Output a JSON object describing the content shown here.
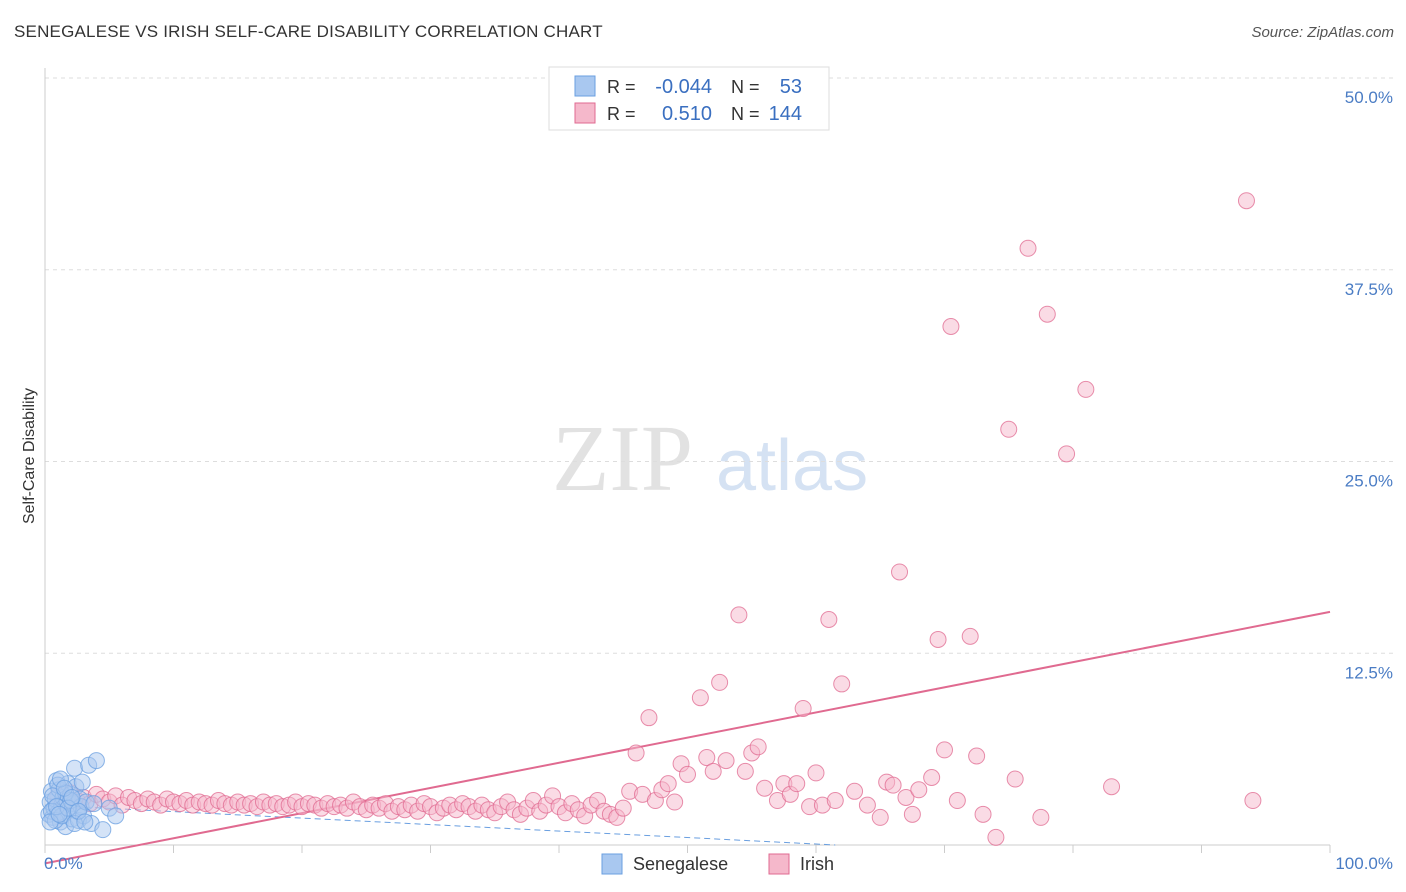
{
  "header": {
    "title": "SENEGALESE VS IRISH SELF-CARE DISABILITY CORRELATION CHART",
    "source": "Source: ZipAtlas.com"
  },
  "watermark": {
    "zip": "ZIP",
    "atlas": "atlas"
  },
  "chart_data": {
    "type": "scatter",
    "title": "SENEGALESE VS IRISH SELF-CARE DISABILITY CORRELATION CHART",
    "xlabel": "",
    "ylabel": "Self-Care Disability",
    "xlim": [
      0,
      100
    ],
    "ylim": [
      0,
      50
    ],
    "x_tick_labels": [
      "0.0%",
      "100.0%"
    ],
    "y_ticks": [
      12.5,
      25.0,
      37.5,
      50.0
    ],
    "y_tick_labels": [
      "12.5%",
      "25.0%",
      "37.5%",
      "50.0%"
    ],
    "grid": true,
    "legend_position": "top-center",
    "legend": {
      "rows": [
        {
          "name": "Senegalese",
          "r_label": "R =",
          "r_value": "-0.044",
          "n_label": "N =",
          "n_value": "53"
        },
        {
          "name": "Irish",
          "r_label": "R =",
          "r_value": "0.510",
          "n_label": "N =",
          "n_value": "144"
        }
      ]
    },
    "series": [
      {
        "name": "Senegalese",
        "color": "#6a9fe0",
        "fill": "#a9c8f0",
        "trend": {
          "x": [
            0,
            61.5
          ],
          "y": [
            2.6,
            0.0
          ],
          "style": "dashed"
        },
        "points": [
          [
            0.3,
            2.0
          ],
          [
            0.4,
            2.8
          ],
          [
            0.5,
            3.5
          ],
          [
            0.6,
            1.8
          ],
          [
            0.7,
            2.4
          ],
          [
            0.8,
            3.0
          ],
          [
            0.9,
            4.2
          ],
          [
            1.0,
            2.1
          ],
          [
            1.1,
            3.6
          ],
          [
            1.2,
            1.5
          ],
          [
            1.3,
            2.6
          ],
          [
            1.4,
            3.1
          ],
          [
            1.5,
            2.0
          ],
          [
            1.6,
            1.2
          ],
          [
            1.7,
            2.9
          ],
          [
            1.8,
            4.0
          ],
          [
            1.9,
            2.3
          ],
          [
            2.0,
            3.3
          ],
          [
            2.1,
            1.7
          ],
          [
            2.2,
            2.7
          ],
          [
            2.3,
            5.0
          ],
          [
            2.4,
            3.8
          ],
          [
            2.5,
            2.2
          ],
          [
            2.6,
            1.6
          ],
          [
            2.7,
            3.0
          ],
          [
            2.8,
            2.5
          ],
          [
            2.9,
            4.1
          ],
          [
            3.0,
            1.9
          ],
          [
            3.2,
            2.8
          ],
          [
            3.4,
            5.2
          ],
          [
            3.6,
            1.4
          ],
          [
            4.0,
            5.5
          ],
          [
            4.5,
            1.0
          ],
          [
            5.0,
            2.4
          ],
          [
            5.5,
            1.9
          ],
          [
            0.5,
            2.2
          ],
          [
            0.8,
            1.6
          ],
          [
            1.0,
            3.9
          ],
          [
            1.3,
            1.9
          ],
          [
            1.6,
            3.4
          ],
          [
            2.0,
            2.9
          ],
          [
            2.3,
            1.4
          ],
          [
            0.6,
            3.2
          ],
          [
            0.9,
            2.5
          ],
          [
            1.2,
            4.3
          ],
          [
            1.5,
            3.7
          ],
          [
            1.8,
            2.4
          ],
          [
            2.1,
            3.1
          ],
          [
            2.6,
            2.2
          ],
          [
            3.1,
            1.5
          ],
          [
            3.8,
            2.7
          ],
          [
            0.4,
            1.5
          ],
          [
            1.1,
            2.0
          ]
        ]
      },
      {
        "name": "Irish",
        "color": "#e06a90",
        "fill": "#f5b8cb",
        "trend": {
          "x": [
            0,
            100
          ],
          "y": [
            -1.2,
            15.2
          ],
          "style": "solid"
        },
        "points": [
          [
            1.0,
            3.2
          ],
          [
            1.5,
            2.8
          ],
          [
            2.0,
            3.4
          ],
          [
            2.5,
            2.9
          ],
          [
            3.0,
            3.1
          ],
          [
            3.5,
            2.7
          ],
          [
            4.0,
            3.3
          ],
          [
            4.5,
            3.0
          ],
          [
            5.0,
            2.8
          ],
          [
            5.5,
            3.2
          ],
          [
            6.0,
            2.6
          ],
          [
            6.5,
            3.1
          ],
          [
            7.0,
            2.9
          ],
          [
            7.5,
            2.7
          ],
          [
            8.0,
            3.0
          ],
          [
            8.5,
            2.8
          ],
          [
            9.0,
            2.6
          ],
          [
            9.5,
            3.0
          ],
          [
            10.0,
            2.8
          ],
          [
            10.5,
            2.7
          ],
          [
            11.0,
            2.9
          ],
          [
            11.5,
            2.6
          ],
          [
            12.0,
            2.8
          ],
          [
            12.5,
            2.7
          ],
          [
            13.0,
            2.6
          ],
          [
            13.5,
            2.9
          ],
          [
            14.0,
            2.7
          ],
          [
            14.5,
            2.6
          ],
          [
            15.0,
            2.8
          ],
          [
            15.5,
            2.6
          ],
          [
            16.0,
            2.7
          ],
          [
            16.5,
            2.5
          ],
          [
            17.0,
            2.8
          ],
          [
            17.5,
            2.6
          ],
          [
            18.0,
            2.7
          ],
          [
            18.5,
            2.5
          ],
          [
            19.0,
            2.6
          ],
          [
            19.5,
            2.8
          ],
          [
            20.0,
            2.5
          ],
          [
            20.5,
            2.7
          ],
          [
            21.0,
            2.6
          ],
          [
            21.5,
            2.4
          ],
          [
            22.0,
            2.7
          ],
          [
            22.5,
            2.5
          ],
          [
            23.0,
            2.6
          ],
          [
            23.5,
            2.4
          ],
          [
            24.0,
            2.8
          ],
          [
            24.5,
            2.5
          ],
          [
            25.0,
            2.3
          ],
          [
            25.5,
            2.6
          ],
          [
            26.0,
            2.4
          ],
          [
            26.5,
            2.7
          ],
          [
            27.0,
            2.2
          ],
          [
            27.5,
            2.5
          ],
          [
            28.0,
            2.3
          ],
          [
            28.5,
            2.6
          ],
          [
            29.0,
            2.2
          ],
          [
            29.5,
            2.7
          ],
          [
            30.0,
            2.5
          ],
          [
            30.5,
            2.1
          ],
          [
            31.0,
            2.4
          ],
          [
            31.5,
            2.6
          ],
          [
            32.0,
            2.3
          ],
          [
            32.5,
            2.7
          ],
          [
            33.0,
            2.5
          ],
          [
            33.5,
            2.2
          ],
          [
            34.0,
            2.6
          ],
          [
            34.5,
            2.3
          ],
          [
            35.0,
            2.1
          ],
          [
            35.5,
            2.5
          ],
          [
            36.0,
            2.8
          ],
          [
            36.5,
            2.3
          ],
          [
            37.0,
            2.0
          ],
          [
            37.5,
            2.4
          ],
          [
            38.0,
            2.9
          ],
          [
            38.5,
            2.2
          ],
          [
            39.0,
            2.6
          ],
          [
            39.5,
            3.2
          ],
          [
            40.0,
            2.5
          ],
          [
            40.5,
            2.1
          ],
          [
            41.0,
            2.7
          ],
          [
            41.5,
            2.3
          ],
          [
            42.0,
            1.9
          ],
          [
            42.5,
            2.6
          ],
          [
            43.0,
            2.9
          ],
          [
            43.5,
            2.2
          ],
          [
            44.0,
            2.0
          ],
          [
            44.5,
            1.8
          ],
          [
            45.0,
            2.4
          ],
          [
            45.5,
            3.5
          ],
          [
            46.0,
            6.0
          ],
          [
            46.5,
            3.3
          ],
          [
            47.0,
            8.3
          ],
          [
            47.5,
            2.9
          ],
          [
            48.0,
            3.6
          ],
          [
            48.5,
            4.0
          ],
          [
            49.0,
            2.8
          ],
          [
            49.5,
            5.3
          ],
          [
            50.0,
            4.6
          ],
          [
            51.0,
            9.6
          ],
          [
            51.5,
            5.7
          ],
          [
            52.0,
            4.8
          ],
          [
            52.5,
            10.6
          ],
          [
            53.0,
            5.5
          ],
          [
            54.0,
            15.0
          ],
          [
            54.5,
            4.8
          ],
          [
            55.0,
            6.0
          ],
          [
            55.5,
            6.4
          ],
          [
            56.0,
            3.7
          ],
          [
            57.0,
            2.9
          ],
          [
            57.5,
            4.0
          ],
          [
            58.0,
            3.3
          ],
          [
            58.5,
            4.0
          ],
          [
            59.0,
            8.9
          ],
          [
            59.5,
            2.5
          ],
          [
            60.0,
            4.7
          ],
          [
            60.5,
            2.6
          ],
          [
            61.0,
            14.7
          ],
          [
            61.5,
            2.9
          ],
          [
            62.0,
            10.5
          ],
          [
            63.0,
            3.5
          ],
          [
            64.0,
            2.6
          ],
          [
            65.0,
            1.8
          ],
          [
            65.5,
            4.1
          ],
          [
            66.0,
            3.9
          ],
          [
            66.5,
            17.8
          ],
          [
            67.0,
            3.1
          ],
          [
            67.5,
            2.0
          ],
          [
            68.0,
            3.6
          ],
          [
            69.0,
            4.4
          ],
          [
            69.5,
            13.4
          ],
          [
            70.0,
            6.2
          ],
          [
            70.5,
            33.8
          ],
          [
            71.0,
            2.9
          ],
          [
            72.0,
            13.6
          ],
          [
            72.5,
            5.8
          ],
          [
            73.0,
            2.0
          ],
          [
            74.0,
            0.5
          ],
          [
            75.0,
            27.1
          ],
          [
            75.5,
            4.3
          ],
          [
            76.5,
            38.9
          ],
          [
            77.5,
            1.8
          ],
          [
            78.0,
            34.6
          ],
          [
            79.5,
            25.5
          ],
          [
            81.0,
            29.7
          ],
          [
            83.0,
            3.8
          ],
          [
            93.5,
            42.0
          ],
          [
            94.0,
            2.9
          ]
        ]
      }
    ]
  },
  "bottom_legend": {
    "items": [
      "Senegalese",
      "Irish"
    ]
  }
}
